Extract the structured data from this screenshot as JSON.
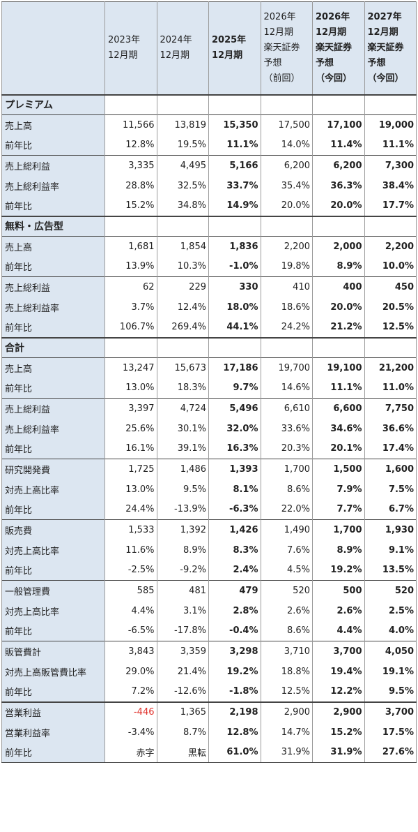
{
  "header": {
    "columns": [
      {
        "text": "2023年\n12月期",
        "bold": false
      },
      {
        "text": "2024年\n12月期",
        "bold": false
      },
      {
        "text": "2025年\n12月期",
        "bold": true
      },
      {
        "text": "2026年\n12月期\n楽天証券\n予想\n（前回）",
        "bold": false
      },
      {
        "text": "2026年\n12月期\n楽天証券\n予想\n（今回）",
        "bold": true
      },
      {
        "text": "2027年\n12月期\n楽天証券\n予想\n（今回）",
        "bold": true
      }
    ]
  },
  "sections": [
    {
      "title": "プレミアム",
      "groups": [
        {
          "rows": [
            {
              "label": "売上高",
              "cells": [
                "11,566",
                "13,819",
                "15,350",
                "17,500",
                "17,100",
                "19,000"
              ]
            },
            {
              "label": "前年比",
              "cells": [
                "12.8%",
                "19.5%",
                "11.1%",
                "14.0%",
                "11.4%",
                "11.1%"
              ]
            }
          ]
        },
        {
          "rows": [
            {
              "label": "売上総利益",
              "cells": [
                "3,335",
                "4,495",
                "5,166",
                "6,200",
                "6,200",
                "7,300"
              ]
            },
            {
              "label": "売上総利益率",
              "cells": [
                "28.8%",
                "32.5%",
                "33.7%",
                "35.4%",
                "36.3%",
                "38.4%"
              ]
            },
            {
              "label": "前年比",
              "cells": [
                "15.2%",
                "34.8%",
                "14.9%",
                "20.0%",
                "20.0%",
                "17.7%"
              ]
            }
          ]
        }
      ]
    },
    {
      "title": "無料・広告型",
      "groups": [
        {
          "rows": [
            {
              "label": "売上高",
              "cells": [
                "1,681",
                "1,854",
                "1,836",
                "2,200",
                "2,000",
                "2,200"
              ]
            },
            {
              "label": "前年比",
              "cells": [
                "13.9%",
                "10.3%",
                "-1.0%",
                "19.8%",
                "8.9%",
                "10.0%"
              ]
            }
          ]
        },
        {
          "rows": [
            {
              "label": "売上総利益",
              "cells": [
                "62",
                "229",
                "330",
                "410",
                "400",
                "450"
              ]
            },
            {
              "label": "売上総利益率",
              "cells": [
                "3.7%",
                "12.4%",
                "18.0%",
                "18.6%",
                "20.0%",
                "20.5%"
              ]
            },
            {
              "label": "前年比",
              "cells": [
                "106.7%",
                "269.4%",
                "44.1%",
                "24.2%",
                "21.2%",
                "12.5%"
              ]
            }
          ]
        }
      ]
    },
    {
      "title": "合計",
      "groups": [
        {
          "rows": [
            {
              "label": "売上高",
              "cells": [
                "13,247",
                "15,673",
                "17,186",
                "19,700",
                "19,100",
                "21,200"
              ]
            },
            {
              "label": "前年比",
              "cells": [
                "13.0%",
                "18.3%",
                "9.7%",
                "14.6%",
                "11.1%",
                "11.0%"
              ]
            }
          ]
        },
        {
          "rows": [
            {
              "label": "売上総利益",
              "cells": [
                "3,397",
                "4,724",
                "5,496",
                "6,610",
                "6,600",
                "7,750"
              ]
            },
            {
              "label": "売上総利益率",
              "cells": [
                "25.6%",
                "30.1%",
                "32.0%",
                "33.6%",
                "34.6%",
                "36.6%"
              ]
            },
            {
              "label": "前年比",
              "cells": [
                "16.1%",
                "39.1%",
                "16.3%",
                "20.3%",
                "20.1%",
                "17.4%"
              ]
            }
          ]
        },
        {
          "rows": [
            {
              "label": "研究開発費",
              "cells": [
                "1,725",
                "1,486",
                "1,393",
                "1,700",
                "1,500",
                "1,600"
              ]
            },
            {
              "label": "対売上高比率",
              "cells": [
                "13.0%",
                "9.5%",
                "8.1%",
                "8.6%",
                "7.9%",
                "7.5%"
              ]
            },
            {
              "label": "前年比",
              "cells": [
                "24.4%",
                "-13.9%",
                "-6.3%",
                "22.0%",
                "7.7%",
                "6.7%"
              ]
            }
          ]
        },
        {
          "rows": [
            {
              "label": "販売費",
              "cells": [
                "1,533",
                "1,392",
                "1,426",
                "1,490",
                "1,700",
                "1,930"
              ]
            },
            {
              "label": "対売上高比率",
              "cells": [
                "11.6%",
                "8.9%",
                "8.3%",
                "7.6%",
                "8.9%",
                "9.1%"
              ]
            },
            {
              "label": "前年比",
              "cells": [
                "-2.5%",
                "-9.2%",
                "2.4%",
                "4.5%",
                "19.2%",
                "13.5%"
              ]
            }
          ]
        },
        {
          "rows": [
            {
              "label": "一般管理費",
              "cells": [
                "585",
                "481",
                "479",
                "520",
                "500",
                "520"
              ]
            },
            {
              "label": "対売上高比率",
              "cells": [
                "4.4%",
                "3.1%",
                "2.8%",
                "2.6%",
                "2.6%",
                "2.5%"
              ]
            },
            {
              "label": "前年比",
              "cells": [
                "-6.5%",
                "-17.8%",
                "-0.4%",
                "8.6%",
                "4.4%",
                "4.0%"
              ]
            }
          ]
        },
        {
          "rows": [
            {
              "label": "販管費計",
              "cells": [
                "3,843",
                "3,359",
                "3,298",
                "3,710",
                "3,700",
                "4,050"
              ]
            },
            {
              "label": "対売上高販管費比率",
              "cells": [
                "29.0%",
                "21.4%",
                "19.2%",
                "18.8%",
                "19.4%",
                "19.1%"
              ]
            },
            {
              "label": "前年比",
              "cells": [
                "7.2%",
                "-12.6%",
                "-1.8%",
                "12.5%",
                "12.2%",
                "9.5%"
              ]
            }
          ]
        }
      ]
    },
    {
      "groups": [
        {
          "rows": [
            {
              "label": "営業利益",
              "cells": [
                {
                  "text": "-446",
                  "color": "#e0302a"
                },
                "1,365",
                "2,198",
                "2,900",
                "2,900",
                "3,700"
              ]
            },
            {
              "label": "営業利益率",
              "cells": [
                "-3.4%",
                "8.7%",
                "12.8%",
                "14.7%",
                "15.2%",
                "17.5%"
              ]
            },
            {
              "label": "前年比",
              "cells": [
                "赤字",
                "黒転",
                "61.0%",
                "31.9%",
                "31.9%",
                "27.6%"
              ]
            }
          ]
        }
      ]
    }
  ]
}
